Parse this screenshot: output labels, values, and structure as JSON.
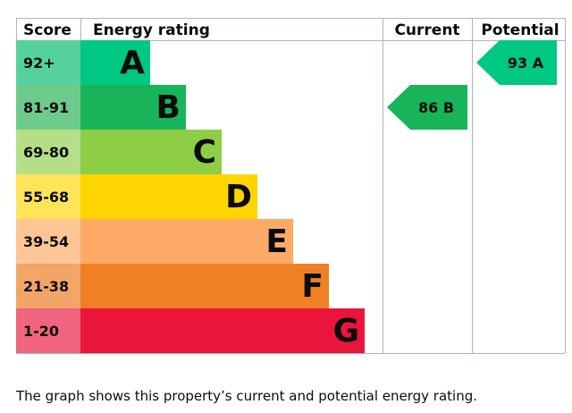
{
  "chart_data": {
    "type": "bar",
    "headers": {
      "score": "Score",
      "rating": "Energy rating",
      "current": "Current",
      "potential": "Potential"
    },
    "bands": [
      {
        "score": "92+",
        "letter": "A",
        "color": "#00c781",
        "score_color": "#55d1a0"
      },
      {
        "score": "81-91",
        "letter": "B",
        "color": "#19b459",
        "score_color": "#6fca8e"
      },
      {
        "score": "69-80",
        "letter": "C",
        "color": "#8dce46",
        "score_color": "#b5df87"
      },
      {
        "score": "55-68",
        "letter": "D",
        "color": "#ffd500",
        "score_color": "#ffe45a"
      },
      {
        "score": "39-54",
        "letter": "E",
        "color": "#fcaa65",
        "score_color": "#fdc596"
      },
      {
        "score": "21-38",
        "letter": "F",
        "color": "#ef8023",
        "score_color": "#f3a567"
      },
      {
        "score": "1-20",
        "letter": "G",
        "color": "#e9153b",
        "score_color": "#f0647d"
      }
    ],
    "current": {
      "value": 86,
      "letter": "B",
      "label": "86 B",
      "color": "#19b459"
    },
    "potential": {
      "value": 93,
      "letter": "A",
      "label": "93 A",
      "color": "#00c781"
    }
  },
  "caption": "The graph shows this property’s current and potential energy rating."
}
